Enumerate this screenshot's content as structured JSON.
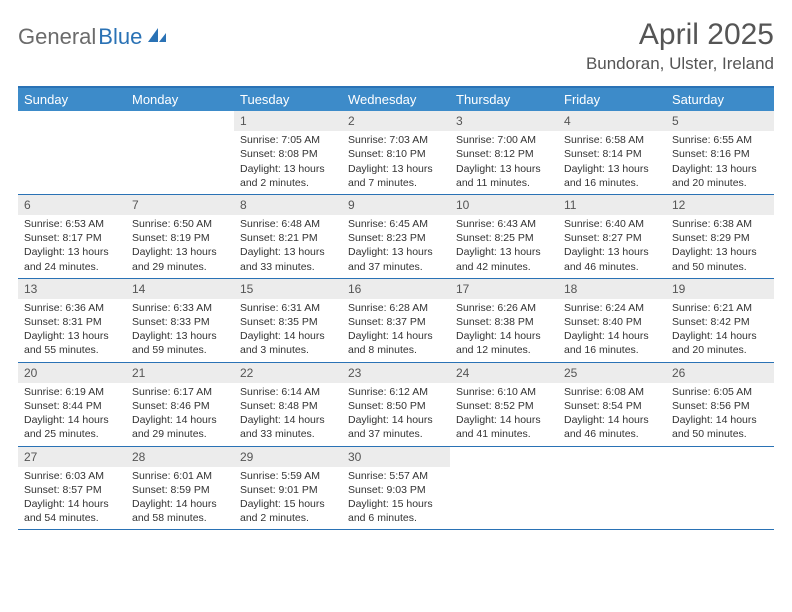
{
  "logo": {
    "part1": "General",
    "part2": "Blue"
  },
  "title": "April 2025",
  "location": "Bundoran, Ulster, Ireland",
  "colors": {
    "header_bar": "#3d8bc9",
    "border": "#2a72b5",
    "daynum_bg": "#ececec",
    "text": "#333333",
    "title_text": "#555555"
  },
  "weekdays": [
    "Sunday",
    "Monday",
    "Tuesday",
    "Wednesday",
    "Thursday",
    "Friday",
    "Saturday"
  ],
  "weeks": [
    [
      {
        "empty": true
      },
      {
        "empty": true
      },
      {
        "num": "1",
        "sunrise": "Sunrise: 7:05 AM",
        "sunset": "Sunset: 8:08 PM",
        "daylight": "Daylight: 13 hours and 2 minutes."
      },
      {
        "num": "2",
        "sunrise": "Sunrise: 7:03 AM",
        "sunset": "Sunset: 8:10 PM",
        "daylight": "Daylight: 13 hours and 7 minutes."
      },
      {
        "num": "3",
        "sunrise": "Sunrise: 7:00 AM",
        "sunset": "Sunset: 8:12 PM",
        "daylight": "Daylight: 13 hours and 11 minutes."
      },
      {
        "num": "4",
        "sunrise": "Sunrise: 6:58 AM",
        "sunset": "Sunset: 8:14 PM",
        "daylight": "Daylight: 13 hours and 16 minutes."
      },
      {
        "num": "5",
        "sunrise": "Sunrise: 6:55 AM",
        "sunset": "Sunset: 8:16 PM",
        "daylight": "Daylight: 13 hours and 20 minutes."
      }
    ],
    [
      {
        "num": "6",
        "sunrise": "Sunrise: 6:53 AM",
        "sunset": "Sunset: 8:17 PM",
        "daylight": "Daylight: 13 hours and 24 minutes."
      },
      {
        "num": "7",
        "sunrise": "Sunrise: 6:50 AM",
        "sunset": "Sunset: 8:19 PM",
        "daylight": "Daylight: 13 hours and 29 minutes."
      },
      {
        "num": "8",
        "sunrise": "Sunrise: 6:48 AM",
        "sunset": "Sunset: 8:21 PM",
        "daylight": "Daylight: 13 hours and 33 minutes."
      },
      {
        "num": "9",
        "sunrise": "Sunrise: 6:45 AM",
        "sunset": "Sunset: 8:23 PM",
        "daylight": "Daylight: 13 hours and 37 minutes."
      },
      {
        "num": "10",
        "sunrise": "Sunrise: 6:43 AM",
        "sunset": "Sunset: 8:25 PM",
        "daylight": "Daylight: 13 hours and 42 minutes."
      },
      {
        "num": "11",
        "sunrise": "Sunrise: 6:40 AM",
        "sunset": "Sunset: 8:27 PM",
        "daylight": "Daylight: 13 hours and 46 minutes."
      },
      {
        "num": "12",
        "sunrise": "Sunrise: 6:38 AM",
        "sunset": "Sunset: 8:29 PM",
        "daylight": "Daylight: 13 hours and 50 minutes."
      }
    ],
    [
      {
        "num": "13",
        "sunrise": "Sunrise: 6:36 AM",
        "sunset": "Sunset: 8:31 PM",
        "daylight": "Daylight: 13 hours and 55 minutes."
      },
      {
        "num": "14",
        "sunrise": "Sunrise: 6:33 AM",
        "sunset": "Sunset: 8:33 PM",
        "daylight": "Daylight: 13 hours and 59 minutes."
      },
      {
        "num": "15",
        "sunrise": "Sunrise: 6:31 AM",
        "sunset": "Sunset: 8:35 PM",
        "daylight": "Daylight: 14 hours and 3 minutes."
      },
      {
        "num": "16",
        "sunrise": "Sunrise: 6:28 AM",
        "sunset": "Sunset: 8:37 PM",
        "daylight": "Daylight: 14 hours and 8 minutes."
      },
      {
        "num": "17",
        "sunrise": "Sunrise: 6:26 AM",
        "sunset": "Sunset: 8:38 PM",
        "daylight": "Daylight: 14 hours and 12 minutes."
      },
      {
        "num": "18",
        "sunrise": "Sunrise: 6:24 AM",
        "sunset": "Sunset: 8:40 PM",
        "daylight": "Daylight: 14 hours and 16 minutes."
      },
      {
        "num": "19",
        "sunrise": "Sunrise: 6:21 AM",
        "sunset": "Sunset: 8:42 PM",
        "daylight": "Daylight: 14 hours and 20 minutes."
      }
    ],
    [
      {
        "num": "20",
        "sunrise": "Sunrise: 6:19 AM",
        "sunset": "Sunset: 8:44 PM",
        "daylight": "Daylight: 14 hours and 25 minutes."
      },
      {
        "num": "21",
        "sunrise": "Sunrise: 6:17 AM",
        "sunset": "Sunset: 8:46 PM",
        "daylight": "Daylight: 14 hours and 29 minutes."
      },
      {
        "num": "22",
        "sunrise": "Sunrise: 6:14 AM",
        "sunset": "Sunset: 8:48 PM",
        "daylight": "Daylight: 14 hours and 33 minutes."
      },
      {
        "num": "23",
        "sunrise": "Sunrise: 6:12 AM",
        "sunset": "Sunset: 8:50 PM",
        "daylight": "Daylight: 14 hours and 37 minutes."
      },
      {
        "num": "24",
        "sunrise": "Sunrise: 6:10 AM",
        "sunset": "Sunset: 8:52 PM",
        "daylight": "Daylight: 14 hours and 41 minutes."
      },
      {
        "num": "25",
        "sunrise": "Sunrise: 6:08 AM",
        "sunset": "Sunset: 8:54 PM",
        "daylight": "Daylight: 14 hours and 46 minutes."
      },
      {
        "num": "26",
        "sunrise": "Sunrise: 6:05 AM",
        "sunset": "Sunset: 8:56 PM",
        "daylight": "Daylight: 14 hours and 50 minutes."
      }
    ],
    [
      {
        "num": "27",
        "sunrise": "Sunrise: 6:03 AM",
        "sunset": "Sunset: 8:57 PM",
        "daylight": "Daylight: 14 hours and 54 minutes."
      },
      {
        "num": "28",
        "sunrise": "Sunrise: 6:01 AM",
        "sunset": "Sunset: 8:59 PM",
        "daylight": "Daylight: 14 hours and 58 minutes."
      },
      {
        "num": "29",
        "sunrise": "Sunrise: 5:59 AM",
        "sunset": "Sunset: 9:01 PM",
        "daylight": "Daylight: 15 hours and 2 minutes."
      },
      {
        "num": "30",
        "sunrise": "Sunrise: 5:57 AM",
        "sunset": "Sunset: 9:03 PM",
        "daylight": "Daylight: 15 hours and 6 minutes."
      },
      {
        "empty": true
      },
      {
        "empty": true
      },
      {
        "empty": true
      }
    ]
  ]
}
